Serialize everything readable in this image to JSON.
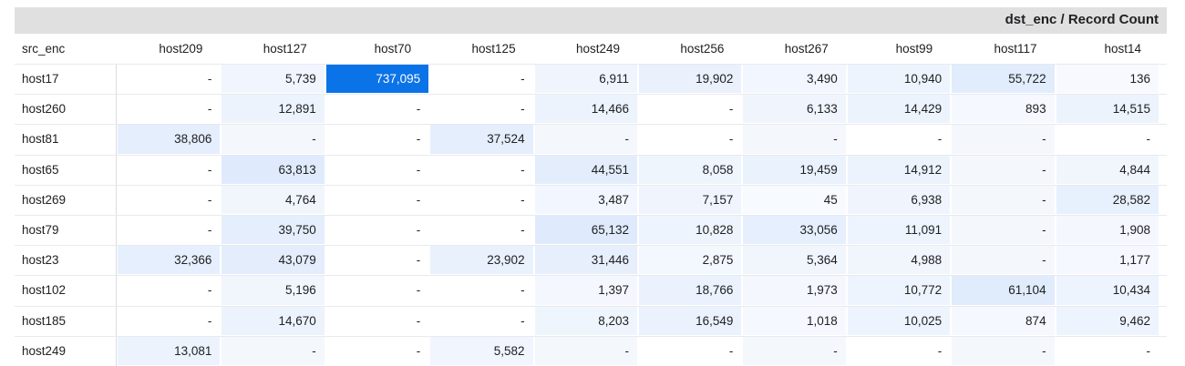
{
  "header": {
    "title": "dst_enc / Record Count"
  },
  "table": {
    "row_header": "src_enc",
    "columns": [
      "host209",
      "host127",
      "host70",
      "host125",
      "host249",
      "host256",
      "host267",
      "host99",
      "host117",
      "host14"
    ],
    "rows": [
      {
        "label": "host17",
        "cells": [
          "-",
          "5,739",
          "737,095",
          "-",
          "6,911",
          "19,902",
          "3,490",
          "10,940",
          "55,722",
          "136"
        ]
      },
      {
        "label": "host260",
        "cells": [
          "-",
          "12,891",
          "-",
          "-",
          "14,466",
          "-",
          "6,133",
          "14,429",
          "893",
          "14,515"
        ]
      },
      {
        "label": "host81",
        "cells": [
          "38,806",
          "-",
          "-",
          "37,524",
          "-",
          "-",
          "-",
          "-",
          "-",
          "-"
        ]
      },
      {
        "label": "host65",
        "cells": [
          "-",
          "63,813",
          "-",
          "-",
          "44,551",
          "8,058",
          "19,459",
          "14,912",
          "-",
          "4,844"
        ]
      },
      {
        "label": "host269",
        "cells": [
          "-",
          "4,764",
          "-",
          "-",
          "3,487",
          "7,157",
          "45",
          "6,938",
          "-",
          "28,582"
        ]
      },
      {
        "label": "host79",
        "cells": [
          "-",
          "39,750",
          "-",
          "-",
          "65,132",
          "10,828",
          "33,056",
          "11,091",
          "-",
          "1,908"
        ]
      },
      {
        "label": "host23",
        "cells": [
          "32,366",
          "43,079",
          "-",
          "23,902",
          "31,446",
          "2,875",
          "5,364",
          "4,988",
          "-",
          "1,177"
        ]
      },
      {
        "label": "host102",
        "cells": [
          "-",
          "5,196",
          "-",
          "-",
          "1,397",
          "18,766",
          "1,973",
          "10,772",
          "61,104",
          "10,434"
        ]
      },
      {
        "label": "host185",
        "cells": [
          "-",
          "14,670",
          "-",
          "-",
          "8,203",
          "16,549",
          "1,018",
          "10,025",
          "874",
          "9,462"
        ]
      },
      {
        "label": "host249",
        "cells": [
          "13,081",
          "-",
          "-",
          "5,582",
          "-",
          "-",
          "-",
          "-",
          "-",
          "-"
        ]
      }
    ]
  },
  "colors": {
    "heat_max": "#0b73e8",
    "heat_light": "#f3f7fd",
    "header_band": "#e0e0e0",
    "column_tint": "#f4f7fc"
  }
}
